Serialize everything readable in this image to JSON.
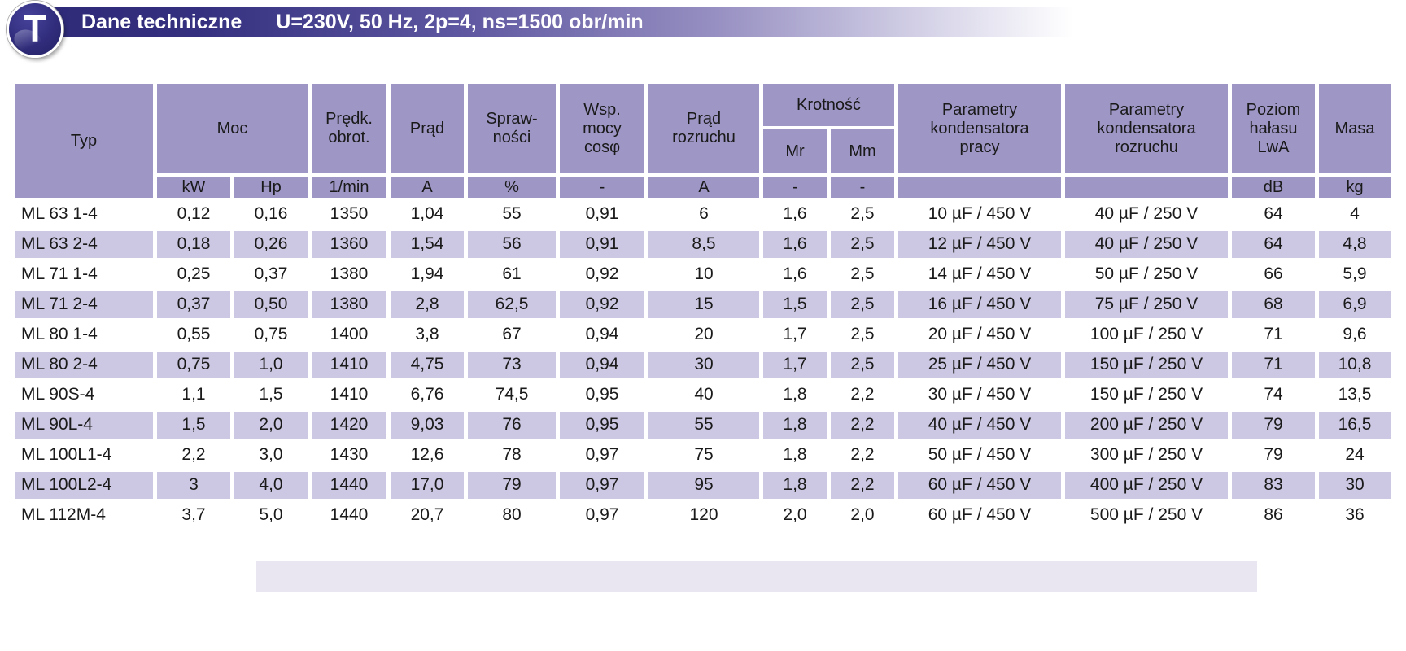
{
  "header": {
    "badge_letter": "T",
    "title": "Dane techniczne",
    "subtitle": "U=230V, 50 Hz, 2p=4, ns=1500 obr/min"
  },
  "colors": {
    "banner_dark": "#2e2a78",
    "banner_mid": "#8d86bb",
    "header_cell": "#9e96c5",
    "stripe_row": "#ccc7e2",
    "badge_fill": "#312d7c"
  },
  "table": {
    "header": {
      "typ": "Typ",
      "moc": "Moc",
      "predk_obrot": "Prędk.\nobrot.",
      "prad": "Prąd",
      "sprawnosci": "Spraw-\nności",
      "wsp_mocy": "Wsp.\nmocy\ncosφ",
      "prad_rozruchu": "Prąd\nrozruchu",
      "krotnosc": "Krotność",
      "mr": "Mr",
      "mm": "Mm",
      "param_kond_pracy": "Parametry\nkondensatora\npracy",
      "param_kond_rozruchu": "Parametry\nkondensatora\nrozruchu",
      "poziom_halasu": "Poziom\nhałasu\nLwA",
      "masa": "Masa"
    },
    "units": [
      "kW",
      "Hp",
      "1/min",
      "A",
      "%",
      "-",
      "A",
      "-",
      "-",
      "",
      "",
      "dB",
      "kg"
    ],
    "rows": [
      {
        "typ": "ML 63 1-4",
        "values": [
          "0,12",
          "0,16",
          "1350",
          "1,04",
          "55",
          "0,91",
          "6",
          "1,6",
          "2,5",
          "10 µF / 450 V",
          "40 µF / 250 V",
          "64",
          "4"
        ]
      },
      {
        "typ": "ML 63 2-4",
        "values": [
          "0,18",
          "0,26",
          "1360",
          "1,54",
          "56",
          "0,91",
          "8,5",
          "1,6",
          "2,5",
          "12 µF / 450 V",
          "40 µF / 250 V",
          "64",
          "4,8"
        ]
      },
      {
        "typ": "ML 71 1-4",
        "values": [
          "0,25",
          "0,37",
          "1380",
          "1,94",
          "61",
          "0,92",
          "10",
          "1,6",
          "2,5",
          "14 µF / 450 V",
          "50 µF / 250 V",
          "66",
          "5,9"
        ]
      },
      {
        "typ": "ML 71 2-4",
        "values": [
          "0,37",
          "0,50",
          "1380",
          "2,8",
          "62,5",
          "0,92",
          "15",
          "1,5",
          "2,5",
          "16 µF / 450 V",
          "75 µF / 250 V",
          "68",
          "6,9"
        ]
      },
      {
        "typ": "ML 80 1-4",
        "values": [
          "0,55",
          "0,75",
          "1400",
          "3,8",
          "67",
          "0,94",
          "20",
          "1,7",
          "2,5",
          "20 µF / 450 V",
          "100 µF / 250 V",
          "71",
          "9,6"
        ]
      },
      {
        "typ": "ML 80 2-4",
        "values": [
          "0,75",
          "1,0",
          "1410",
          "4,75",
          "73",
          "0,94",
          "30",
          "1,7",
          "2,5",
          "25 µF / 450 V",
          "150 µF / 250 V",
          "71",
          "10,8"
        ]
      },
      {
        "typ": "ML 90S-4",
        "values": [
          "1,1",
          "1,5",
          "1410",
          "6,76",
          "74,5",
          "0,95",
          "40",
          "1,8",
          "2,2",
          "30 µF / 450 V",
          "150 µF / 250 V",
          "74",
          "13,5"
        ]
      },
      {
        "typ": "ML 90L-4",
        "values": [
          "1,5",
          "2,0",
          "1420",
          "9,03",
          "76",
          "0,95",
          "55",
          "1,8",
          "2,2",
          "40 µF / 450 V",
          "200 µF / 250 V",
          "79",
          "16,5"
        ]
      },
      {
        "typ": "ML 100L1-4",
        "values": [
          "2,2",
          "3,0",
          "1430",
          "12,6",
          "78",
          "0,97",
          "75",
          "1,8",
          "2,2",
          "50 µF / 450 V",
          "300 µF / 250 V",
          "79",
          "24"
        ]
      },
      {
        "typ": "ML 100L2-4",
        "values": [
          "3",
          "4,0",
          "1440",
          "17,0",
          "79",
          "0,97",
          "95",
          "1,8",
          "2,2",
          "60 µF / 450 V",
          "400 µF / 250 V",
          "83",
          "30"
        ]
      },
      {
        "typ": "ML 112M-4",
        "values": [
          "3,7",
          "5,0",
          "1440",
          "20,7",
          "80",
          "0,97",
          "120",
          "2,0",
          "2,0",
          "60 µF / 450 V",
          "500 µF / 250 V",
          "86",
          "36"
        ]
      }
    ]
  }
}
